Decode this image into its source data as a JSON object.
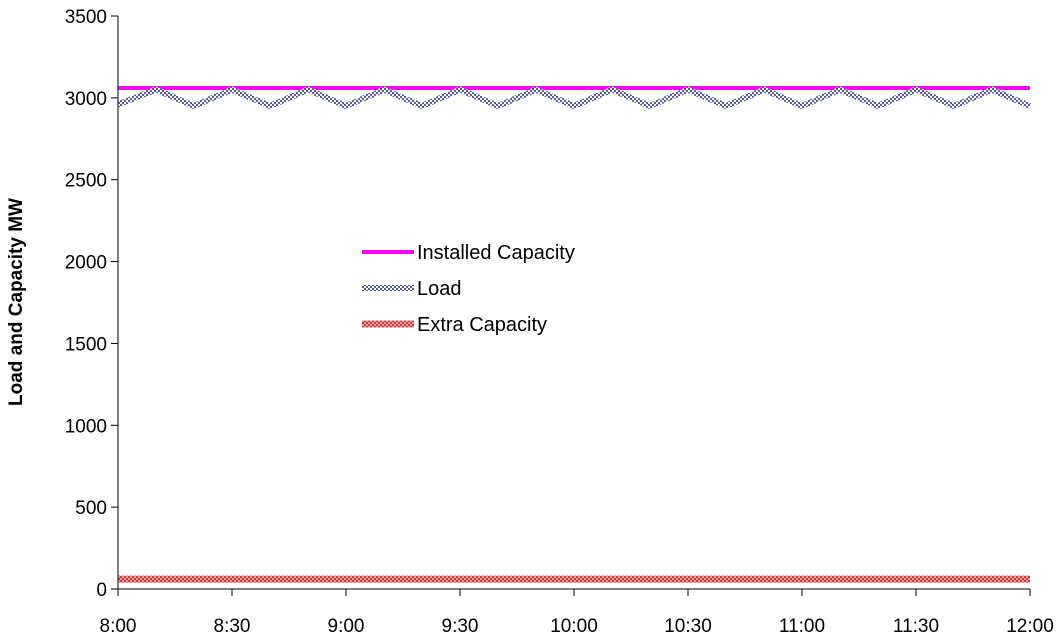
{
  "chart_data": {
    "type": "line",
    "title": "",
    "xlabel": "",
    "ylabel": "Load and Capacity MW",
    "ylim": [
      0,
      3500
    ],
    "yticks": [
      0,
      500,
      1000,
      1500,
      2000,
      2500,
      3000,
      3500
    ],
    "xticks": [
      "8:00",
      "8:30",
      "9:00",
      "9:30",
      "10:00",
      "10:30",
      "11:00",
      "11:30",
      "12:00"
    ],
    "x_minutes": [
      0,
      10,
      20,
      30,
      40,
      50,
      60,
      70,
      80,
      90,
      100,
      110,
      120,
      130,
      140,
      150,
      160,
      170,
      180,
      190,
      200,
      210,
      220,
      230,
      240
    ],
    "grid": false,
    "legend_position": "center-left",
    "series": [
      {
        "name": "Installed Capacity",
        "color": "#ff00ff",
        "style": "solid",
        "values": [
          3060,
          3060,
          3060,
          3060,
          3060,
          3060,
          3060,
          3060,
          3060,
          3060,
          3060,
          3060,
          3060,
          3060,
          3060,
          3060,
          3060,
          3060,
          3060,
          3060,
          3060,
          3060,
          3060,
          3060,
          3060
        ]
      },
      {
        "name": "Load",
        "color": "#5a5a9e",
        "style": "dotted",
        "values": [
          2960,
          3050,
          2950,
          3050,
          2950,
          3050,
          2950,
          3050,
          2950,
          3050,
          2950,
          3050,
          2950,
          3050,
          2950,
          3050,
          2950,
          3050,
          2950,
          3050,
          2950,
          3050,
          2950,
          3050,
          2950
        ]
      },
      {
        "name": "Extra Capacity",
        "color": "#d06060",
        "style": "hatched",
        "values": [
          60,
          60,
          60,
          60,
          60,
          60,
          60,
          60,
          60,
          60,
          60,
          60,
          60,
          60,
          60,
          60,
          60,
          60,
          60,
          60,
          60,
          60,
          60,
          60,
          60
        ]
      }
    ]
  }
}
